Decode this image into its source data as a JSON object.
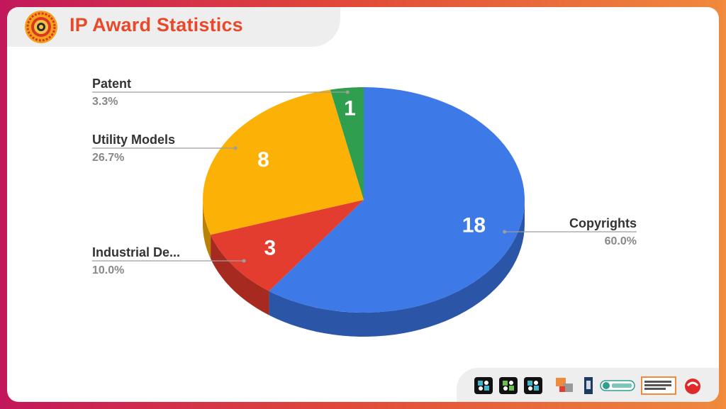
{
  "slide": {
    "title": "IP Award Statistics"
  },
  "chart_data": {
    "type": "pie",
    "style": "3d",
    "slices": [
      {
        "label": "Copyrights",
        "value": 18,
        "percent": "60.0%",
        "color": "#3d7ae8",
        "side_color": "#2b56a8",
        "legend_side": "right"
      },
      {
        "label": "Industrial De...",
        "value": 3,
        "percent": "10.0%",
        "color": "#e23d2f",
        "side_color": "#a62a20",
        "legend_side": "left"
      },
      {
        "label": "Utility Models",
        "value": 8,
        "percent": "26.7%",
        "color": "#fbb106",
        "side_color": "#b98205",
        "legend_side": "left"
      },
      {
        "label": "Patent",
        "value": 1,
        "percent": "3.3%",
        "color": "#2f9e4e",
        "side_color": "#1f6e35",
        "legend_side": "left"
      }
    ]
  },
  "colors": {
    "title": "#e8492a",
    "border_gradient": [
      "#c2185b",
      "#e0463a",
      "#f08a3c"
    ]
  },
  "footer": {
    "logos": [
      "partner-logo-1",
      "partner-logo-2",
      "partner-logo-3",
      "partner-logo-4",
      "partner-logo-5",
      "partner-logo-6",
      "partner-logo-7",
      "partner-logo-8"
    ]
  }
}
